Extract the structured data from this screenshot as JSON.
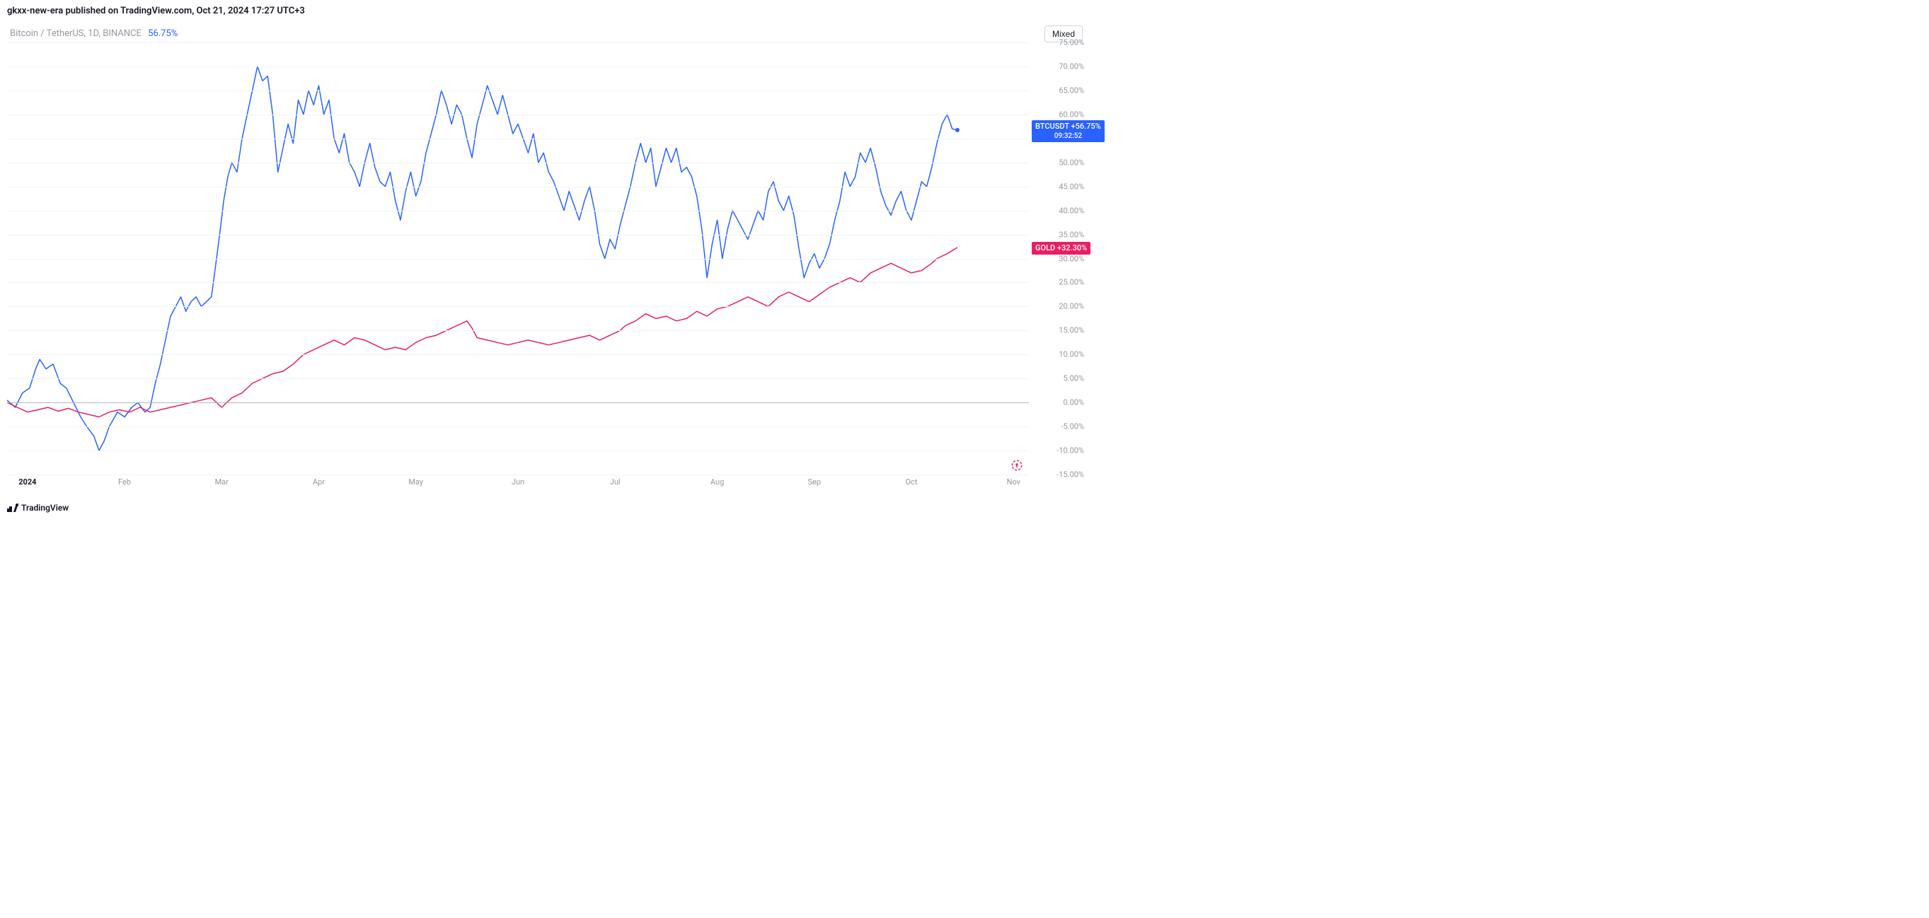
{
  "header": {
    "text": "gkxx-new-era published on TradingView.com, Oct 21, 2024 17:27 UTC+3"
  },
  "subheader": {
    "pair": "Bitcoin / TetherUS, 1D, BINANCE",
    "pct": "56.75%"
  },
  "mixed_button": "Mixed",
  "footer": "TradingView",
  "chart": {
    "type": "line",
    "background_color": "#ffffff",
    "grid_color": "#f0f3fa",
    "zero_line_color": "#b2b5be",
    "y_axis": {
      "min": -15,
      "max": 75,
      "tick_step": 5,
      "label_color": "#9598a1",
      "label_fontsize": 11,
      "format_suffix": "%"
    },
    "x_axis": {
      "labels": [
        {
          "pos": 0.02,
          "text": "2024",
          "bold": true
        },
        {
          "pos": 0.115,
          "text": "Feb",
          "bold": false
        },
        {
          "pos": 0.21,
          "text": "Mar",
          "bold": false
        },
        {
          "pos": 0.305,
          "text": "Apr",
          "bold": false
        },
        {
          "pos": 0.4,
          "text": "May",
          "bold": false
        },
        {
          "pos": 0.5,
          "text": "Jun",
          "bold": false
        },
        {
          "pos": 0.595,
          "text": "Jul",
          "bold": false
        },
        {
          "pos": 0.695,
          "text": "Aug",
          "bold": false
        },
        {
          "pos": 0.79,
          "text": "Sep",
          "bold": false
        },
        {
          "pos": 0.885,
          "text": "Oct",
          "bold": false
        },
        {
          "pos": 0.985,
          "text": "Nov",
          "bold": false
        }
      ],
      "label_color": "#9598a1",
      "label_fontsize": 11
    },
    "series": [
      {
        "name": "BTCUSDT",
        "color": "#2962ff",
        "line_width": 1.5,
        "tag_label": "BTCUSDT",
        "tag_value": "+56.75%",
        "tag_sub": "09:32:52",
        "final_dot": true,
        "data": [
          [
            0.0,
            0.5
          ],
          [
            0.008,
            -1
          ],
          [
            0.015,
            2
          ],
          [
            0.022,
            3
          ],
          [
            0.028,
            7
          ],
          [
            0.032,
            9
          ],
          [
            0.038,
            7
          ],
          [
            0.045,
            8
          ],
          [
            0.052,
            4
          ],
          [
            0.058,
            3
          ],
          [
            0.065,
            0
          ],
          [
            0.072,
            -3
          ],
          [
            0.078,
            -5
          ],
          [
            0.085,
            -7
          ],
          [
            0.09,
            -10
          ],
          [
            0.095,
            -8
          ],
          [
            0.1,
            -5
          ],
          [
            0.108,
            -2
          ],
          [
            0.115,
            -3
          ],
          [
            0.122,
            -1
          ],
          [
            0.128,
            0
          ],
          [
            0.135,
            -2
          ],
          [
            0.14,
            -1
          ],
          [
            0.145,
            4
          ],
          [
            0.15,
            8
          ],
          [
            0.155,
            13
          ],
          [
            0.16,
            18
          ],
          [
            0.165,
            20
          ],
          [
            0.17,
            22
          ],
          [
            0.175,
            19
          ],
          [
            0.18,
            21
          ],
          [
            0.185,
            22
          ],
          [
            0.19,
            20
          ],
          [
            0.195,
            21
          ],
          [
            0.2,
            22
          ],
          [
            0.205,
            30
          ],
          [
            0.208,
            35
          ],
          [
            0.212,
            42
          ],
          [
            0.216,
            47
          ],
          [
            0.22,
            50
          ],
          [
            0.225,
            48
          ],
          [
            0.23,
            55
          ],
          [
            0.235,
            60
          ],
          [
            0.24,
            65
          ],
          [
            0.245,
            70
          ],
          [
            0.25,
            67
          ],
          [
            0.255,
            68
          ],
          [
            0.26,
            60
          ],
          [
            0.265,
            48
          ],
          [
            0.27,
            53
          ],
          [
            0.275,
            58
          ],
          [
            0.28,
            54
          ],
          [
            0.285,
            63
          ],
          [
            0.29,
            60
          ],
          [
            0.295,
            65
          ],
          [
            0.3,
            62
          ],
          [
            0.305,
            66
          ],
          [
            0.31,
            60
          ],
          [
            0.315,
            63
          ],
          [
            0.32,
            55
          ],
          [
            0.325,
            52
          ],
          [
            0.33,
            56
          ],
          [
            0.335,
            50
          ],
          [
            0.34,
            48
          ],
          [
            0.345,
            45
          ],
          [
            0.35,
            50
          ],
          [
            0.355,
            54
          ],
          [
            0.36,
            49
          ],
          [
            0.365,
            46
          ],
          [
            0.37,
            45
          ],
          [
            0.375,
            48
          ],
          [
            0.38,
            42
          ],
          [
            0.385,
            38
          ],
          [
            0.39,
            44
          ],
          [
            0.395,
            48
          ],
          [
            0.4,
            43
          ],
          [
            0.405,
            46
          ],
          [
            0.41,
            52
          ],
          [
            0.415,
            56
          ],
          [
            0.42,
            60
          ],
          [
            0.425,
            65
          ],
          [
            0.43,
            62
          ],
          [
            0.435,
            58
          ],
          [
            0.44,
            62
          ],
          [
            0.445,
            60
          ],
          [
            0.45,
            55
          ],
          [
            0.455,
            51
          ],
          [
            0.46,
            58
          ],
          [
            0.465,
            62
          ],
          [
            0.47,
            66
          ],
          [
            0.475,
            63
          ],
          [
            0.48,
            60
          ],
          [
            0.485,
            64
          ],
          [
            0.49,
            60
          ],
          [
            0.495,
            56
          ],
          [
            0.5,
            58
          ],
          [
            0.505,
            55
          ],
          [
            0.51,
            52
          ],
          [
            0.515,
            56
          ],
          [
            0.52,
            50
          ],
          [
            0.525,
            52
          ],
          [
            0.53,
            48
          ],
          [
            0.535,
            46
          ],
          [
            0.54,
            43
          ],
          [
            0.545,
            40
          ],
          [
            0.55,
            44
          ],
          [
            0.555,
            41
          ],
          [
            0.56,
            38
          ],
          [
            0.565,
            42
          ],
          [
            0.57,
            45
          ],
          [
            0.575,
            40
          ],
          [
            0.58,
            33
          ],
          [
            0.585,
            30
          ],
          [
            0.59,
            34
          ],
          [
            0.595,
            32
          ],
          [
            0.6,
            37
          ],
          [
            0.605,
            41
          ],
          [
            0.61,
            45
          ],
          [
            0.615,
            50
          ],
          [
            0.62,
            54
          ],
          [
            0.625,
            50
          ],
          [
            0.63,
            53
          ],
          [
            0.635,
            45
          ],
          [
            0.64,
            49
          ],
          [
            0.645,
            53
          ],
          [
            0.65,
            50
          ],
          [
            0.655,
            53
          ],
          [
            0.66,
            48
          ],
          [
            0.665,
            49
          ],
          [
            0.67,
            47
          ],
          [
            0.675,
            43
          ],
          [
            0.68,
            36
          ],
          [
            0.685,
            26
          ],
          [
            0.69,
            33
          ],
          [
            0.695,
            38
          ],
          [
            0.7,
            30
          ],
          [
            0.705,
            36
          ],
          [
            0.71,
            40
          ],
          [
            0.715,
            38
          ],
          [
            0.72,
            36
          ],
          [
            0.725,
            34
          ],
          [
            0.73,
            37
          ],
          [
            0.735,
            40
          ],
          [
            0.74,
            38
          ],
          [
            0.745,
            44
          ],
          [
            0.75,
            46
          ],
          [
            0.755,
            42
          ],
          [
            0.76,
            40
          ],
          [
            0.765,
            43
          ],
          [
            0.77,
            39
          ],
          [
            0.775,
            32
          ],
          [
            0.78,
            26
          ],
          [
            0.785,
            29
          ],
          [
            0.79,
            31
          ],
          [
            0.795,
            28
          ],
          [
            0.8,
            30
          ],
          [
            0.805,
            33
          ],
          [
            0.81,
            38
          ],
          [
            0.815,
            42
          ],
          [
            0.82,
            48
          ],
          [
            0.825,
            45
          ],
          [
            0.83,
            47
          ],
          [
            0.835,
            52
          ],
          [
            0.84,
            50
          ],
          [
            0.845,
            53
          ],
          [
            0.85,
            49
          ],
          [
            0.855,
            44
          ],
          [
            0.86,
            41
          ],
          [
            0.865,
            39
          ],
          [
            0.87,
            42
          ],
          [
            0.875,
            44
          ],
          [
            0.88,
            40
          ],
          [
            0.885,
            38
          ],
          [
            0.89,
            42
          ],
          [
            0.895,
            46
          ],
          [
            0.9,
            45
          ],
          [
            0.905,
            49
          ],
          [
            0.91,
            54
          ],
          [
            0.915,
            58
          ],
          [
            0.92,
            60
          ],
          [
            0.925,
            57
          ],
          [
            0.93,
            56.75
          ]
        ]
      },
      {
        "name": "GOLD",
        "color": "#e91e63",
        "line_width": 1.5,
        "tag_label": "GOLD",
        "tag_value": "+32.30%",
        "final_dot": false,
        "data": [
          [
            0.0,
            0
          ],
          [
            0.01,
            -1
          ],
          [
            0.02,
            -2
          ],
          [
            0.03,
            -1.5
          ],
          [
            0.04,
            -1
          ],
          [
            0.05,
            -1.8
          ],
          [
            0.06,
            -1.2
          ],
          [
            0.07,
            -2
          ],
          [
            0.08,
            -2.5
          ],
          [
            0.09,
            -3
          ],
          [
            0.1,
            -2
          ],
          [
            0.11,
            -1.5
          ],
          [
            0.12,
            -2
          ],
          [
            0.13,
            -1
          ],
          [
            0.14,
            -2
          ],
          [
            0.15,
            -1.5
          ],
          [
            0.16,
            -1
          ],
          [
            0.17,
            -0.5
          ],
          [
            0.18,
            0
          ],
          [
            0.19,
            0.5
          ],
          [
            0.2,
            1
          ],
          [
            0.205,
            0
          ],
          [
            0.21,
            -1
          ],
          [
            0.22,
            1
          ],
          [
            0.23,
            2
          ],
          [
            0.24,
            4
          ],
          [
            0.25,
            5
          ],
          [
            0.26,
            6
          ],
          [
            0.27,
            6.5
          ],
          [
            0.28,
            8
          ],
          [
            0.29,
            10
          ],
          [
            0.3,
            11
          ],
          [
            0.31,
            12
          ],
          [
            0.32,
            13
          ],
          [
            0.33,
            12
          ],
          [
            0.34,
            13.5
          ],
          [
            0.35,
            13
          ],
          [
            0.36,
            12
          ],
          [
            0.37,
            11
          ],
          [
            0.38,
            11.5
          ],
          [
            0.39,
            11
          ],
          [
            0.4,
            12.5
          ],
          [
            0.41,
            13.5
          ],
          [
            0.42,
            14
          ],
          [
            0.43,
            15
          ],
          [
            0.44,
            16
          ],
          [
            0.45,
            17
          ],
          [
            0.455,
            15.5
          ],
          [
            0.46,
            13.5
          ],
          [
            0.47,
            13
          ],
          [
            0.48,
            12.5
          ],
          [
            0.49,
            12
          ],
          [
            0.5,
            12.5
          ],
          [
            0.51,
            13
          ],
          [
            0.52,
            12.5
          ],
          [
            0.53,
            12
          ],
          [
            0.54,
            12.5
          ],
          [
            0.55,
            13
          ],
          [
            0.56,
            13.5
          ],
          [
            0.57,
            14
          ],
          [
            0.58,
            13
          ],
          [
            0.59,
            14
          ],
          [
            0.6,
            15
          ],
          [
            0.605,
            16
          ],
          [
            0.615,
            17
          ],
          [
            0.625,
            18.5
          ],
          [
            0.635,
            17.5
          ],
          [
            0.645,
            18
          ],
          [
            0.655,
            17
          ],
          [
            0.665,
            17.5
          ],
          [
            0.675,
            19
          ],
          [
            0.685,
            18
          ],
          [
            0.695,
            19.5
          ],
          [
            0.705,
            20
          ],
          [
            0.715,
            21
          ],
          [
            0.725,
            22
          ],
          [
            0.735,
            21
          ],
          [
            0.745,
            20
          ],
          [
            0.755,
            22
          ],
          [
            0.765,
            23
          ],
          [
            0.775,
            22
          ],
          [
            0.785,
            21
          ],
          [
            0.795,
            22.5
          ],
          [
            0.805,
            24
          ],
          [
            0.815,
            25
          ],
          [
            0.825,
            26
          ],
          [
            0.835,
            25
          ],
          [
            0.845,
            27
          ],
          [
            0.855,
            28
          ],
          [
            0.865,
            29
          ],
          [
            0.875,
            28
          ],
          [
            0.885,
            27
          ],
          [
            0.895,
            27.5
          ],
          [
            0.905,
            29
          ],
          [
            0.91,
            30
          ],
          [
            0.92,
            31
          ],
          [
            0.93,
            32.3
          ]
        ]
      }
    ]
  }
}
